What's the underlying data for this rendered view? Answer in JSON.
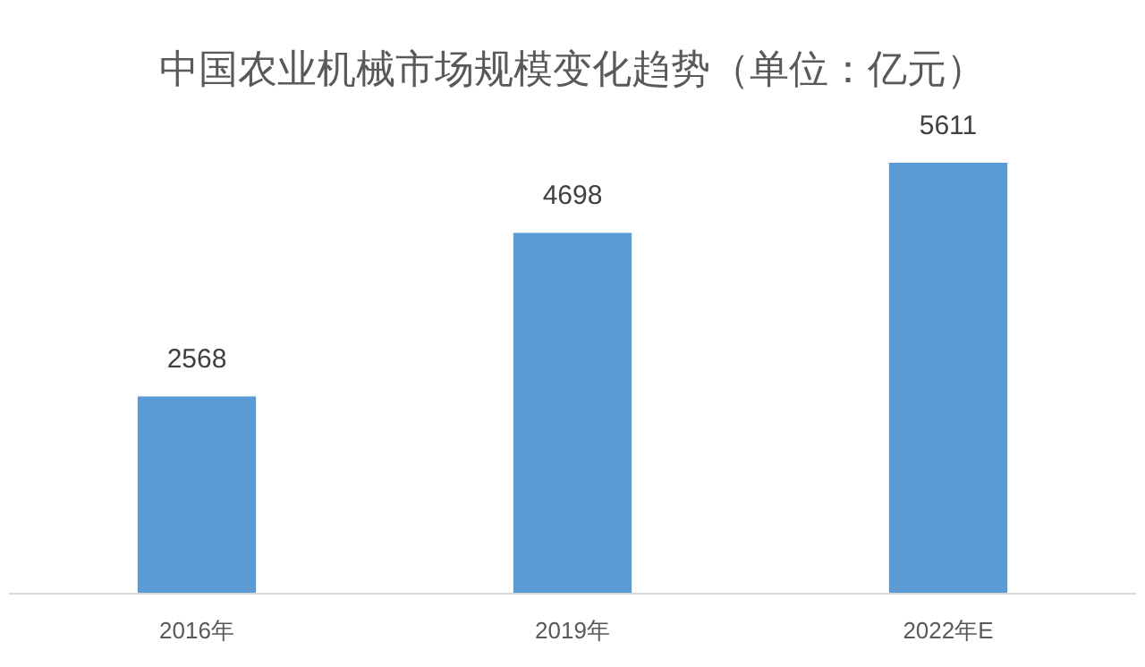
{
  "chart_data": {
    "type": "bar",
    "title": "中国农业机械市场规模变化趋势（单位：亿元）",
    "categories": [
      "2016年",
      "2019年",
      "2022年E"
    ],
    "values": [
      2568,
      4698,
      5611
    ],
    "color": "#5b9bd5",
    "data_labels": true
  }
}
